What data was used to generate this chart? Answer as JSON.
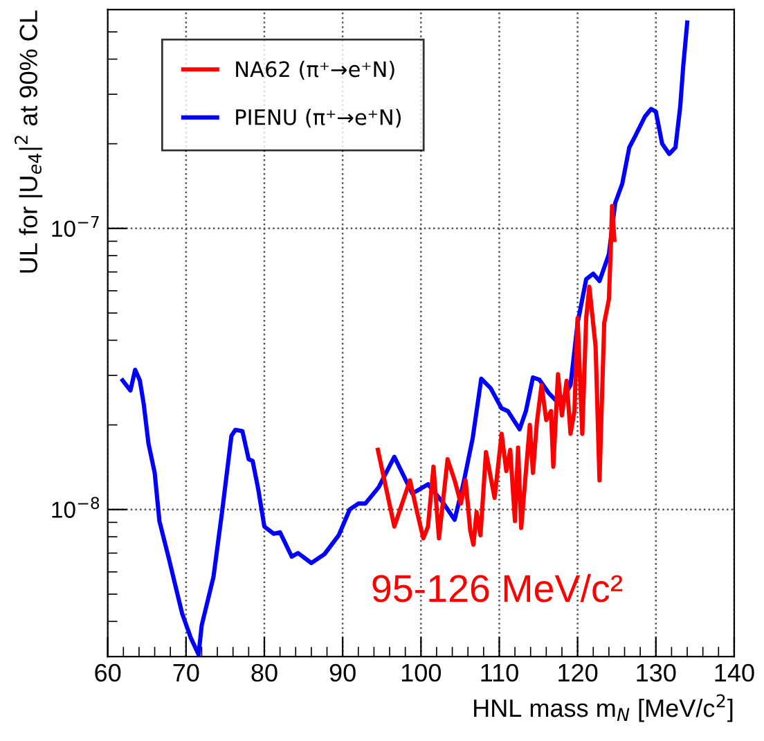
{
  "chart_data": {
    "type": "line",
    "xlabel": "HNL mass m$_{N}$ [MeV/c$^{2}$]",
    "ylabel": "UL for |U$_{e4}$|$^{2}$ at 90% CL",
    "log": "y",
    "grid": true,
    "legend": "top left",
    "xlim": [
      60,
      140
    ],
    "xticks": [
      60,
      70,
      80,
      90,
      100,
      110,
      120,
      130,
      140
    ],
    "ylim": [
      3e-09,
      6e-07
    ],
    "yticks": [
      {
        "value": 1e-08,
        "label": "10$^{−8}$"
      },
      {
        "value": 1e-07,
        "label": "10$^{−7}$"
      }
    ],
    "annotations": [
      "95-126 MeV/c²"
    ],
    "series": [
      {
        "name": "NA62 (π⁺→e⁺N)",
        "color": "#ff0000",
        "x": [
          94.5,
          96.6,
          98.6,
          99.5,
          100.3,
          100.9,
          101.6,
          102.3,
          103.4,
          104.3,
          105.1,
          105.7,
          106.3,
          106.7,
          107.1,
          107.6,
          108.3,
          109.4,
          110.3,
          110.9,
          111.4,
          112.0,
          112.4,
          112.8,
          113.9,
          114.3,
          114.8,
          115.4,
          116.0,
          116.6,
          116.9,
          117.5,
          118.0,
          118.6,
          119.1,
          119.6,
          120.0,
          120.6,
          121.1,
          121.5,
          122.3,
          122.8,
          123.4,
          124.0,
          124.3,
          124.4,
          124.7
        ],
        "values": [
          1.63e-08,
          8.7e-09,
          1.27e-08,
          9.8e-09,
          7.9e-09,
          8.7e-09,
          1.42e-08,
          7.9e-09,
          1.51e-08,
          1.27e-08,
          1.05e-08,
          1.27e-08,
          8.4e-09,
          7.5e-09,
          9.8e-09,
          8.1e-09,
          1.6e-08,
          1.1e-08,
          1.86e-08,
          1.37e-08,
          1.63e-08,
          9.1e-09,
          1.66e-08,
          8.6e-09,
          2e-08,
          1.35e-08,
          2.04e-08,
          2.77e-08,
          2.08e-08,
          2.24e-08,
          1.42e-08,
          3.03e-08,
          2.16e-08,
          2.87e-08,
          1.86e-08,
          2.24e-08,
          4.8e-08,
          1.86e-08,
          4.8e-08,
          6.2e-08,
          3.8e-08,
          1.27e-08,
          4.6e-08,
          5.6e-08,
          9.5e-08,
          1.2e-07,
          9.1e-08
        ]
      },
      {
        "name": "PIENU (π⁺→e⁺N)",
        "color": "#0000ff",
        "x": [
          61.9,
          62.9,
          63.5,
          64.1,
          64.6,
          65.2,
          66.0,
          66.6,
          67.8,
          69.5,
          70.6,
          71.6,
          72.0,
          73.5,
          74.6,
          75.8,
          76.3,
          77.2,
          78.0,
          78.5,
          79.2,
          80.0,
          81.2,
          82.0,
          83.5,
          84.3,
          86.0,
          87.7,
          89.5,
          90.9,
          92.0,
          92.9,
          94.6,
          96.6,
          98.9,
          100.9,
          102.9,
          104.3,
          105.4,
          106.6,
          107.7,
          108.9,
          110.3,
          111.1,
          112.6,
          113.4,
          114.3,
          115.1,
          116.3,
          117.7,
          119.1,
          120.0,
          121.1,
          122.0,
          122.8,
          124.0,
          124.8,
          125.7,
          126.6,
          127.4,
          128.6,
          129.4,
          130.0,
          130.8,
          131.7,
          132.5,
          133.1,
          133.5,
          134.0
        ],
        "values": [
          2.88e-08,
          2.65e-08,
          3.14e-08,
          2.88e-08,
          2.37e-08,
          1.72e-08,
          1.35e-08,
          9.1e-09,
          6.7e-09,
          4.27e-09,
          3.5e-09,
          3.05e-09,
          3.87e-09,
          5.75e-09,
          9.8e-09,
          1.83e-08,
          1.92e-08,
          1.9e-08,
          1.51e-08,
          1.49e-08,
          1.19e-08,
          8.7e-09,
          8.2e-09,
          8.3e-09,
          6.8e-09,
          7e-09,
          6.45e-09,
          6.95e-09,
          8.1e-09,
          1e-08,
          1.05e-08,
          1.05e-08,
          1.2e-08,
          1.54e-08,
          1.14e-08,
          1.23e-08,
          1.05e-08,
          9.2e-09,
          1.23e-08,
          1.79e-08,
          2.92e-08,
          2.7e-08,
          2.29e-08,
          2.24e-08,
          1.93e-08,
          2.24e-08,
          2.95e-08,
          2.9e-08,
          2.6e-08,
          2.37e-08,
          2.77e-08,
          4.6e-08,
          6.6e-08,
          6.9e-08,
          6.5e-08,
          8.1e-08,
          1.23e-07,
          1.44e-07,
          1.94e-07,
          2.14e-07,
          2.5e-07,
          2.66e-07,
          2.6e-07,
          2e-07,
          1.84e-07,
          1.94e-07,
          2.7e-07,
          3.8e-07,
          5.4e-07
        ]
      }
    ]
  }
}
